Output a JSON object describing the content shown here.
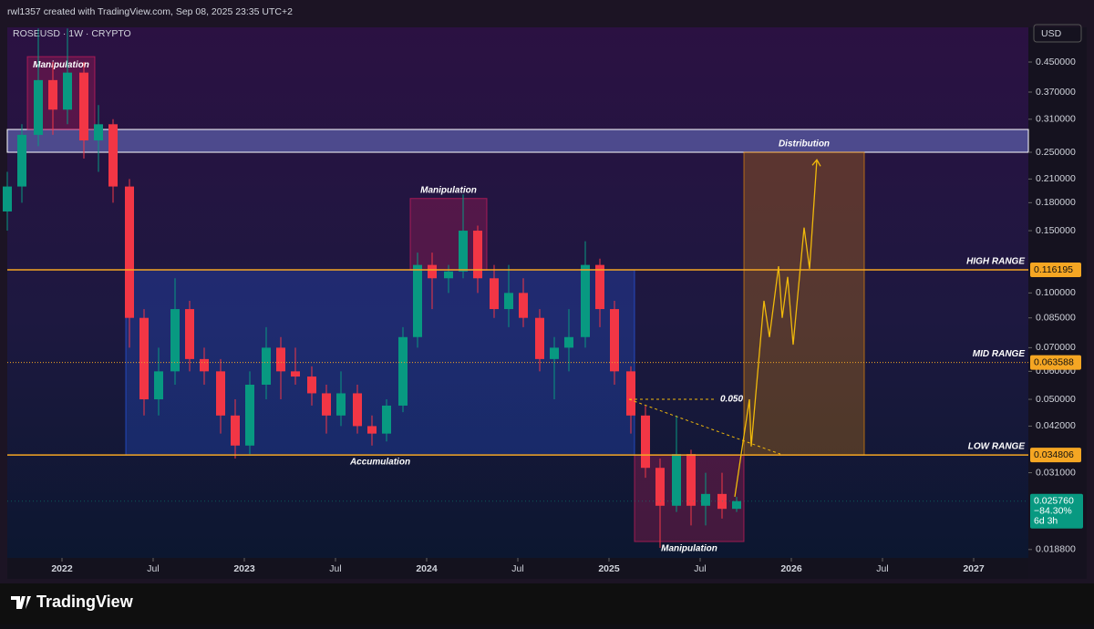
{
  "header": {
    "credit": "rwl1357 created with TradingView.com, Sep 08, 2025 23:35 UTC+2"
  },
  "chart_data": {
    "type": "candlestick",
    "title": "ROSEUSD · 1W · CRYPTO",
    "currency": "USD",
    "log_scale": true,
    "up_color": "#089981",
    "down_color": "#f23645",
    "x": [
      2021.7,
      2021.78,
      2021.87,
      2021.95,
      2022.03,
      2022.12,
      2022.2,
      2022.28,
      2022.37,
      2022.45,
      2022.53,
      2022.62,
      2022.7,
      2022.78,
      2022.87,
      2022.95,
      2023.03,
      2023.12,
      2023.2,
      2023.28,
      2023.37,
      2023.45,
      2023.53,
      2023.62,
      2023.7,
      2023.78,
      2023.87,
      2023.95,
      2024.03,
      2024.12,
      2024.2,
      2024.28,
      2024.37,
      2024.45,
      2024.53,
      2024.62,
      2024.7,
      2024.78,
      2024.87,
      2024.95,
      2025.03,
      2025.12,
      2025.2,
      2025.28,
      2025.37,
      2025.45,
      2025.53,
      2025.62,
      2025.7
    ],
    "open": [
      0.17,
      0.2,
      0.28,
      0.4,
      0.33,
      0.42,
      0.27,
      0.3,
      0.2,
      0.085,
      0.05,
      0.06,
      0.09,
      0.065,
      0.06,
      0.045,
      0.037,
      0.055,
      0.07,
      0.06,
      0.058,
      0.052,
      0.045,
      0.052,
      0.042,
      0.04,
      0.048,
      0.075,
      0.12,
      0.11,
      0.115,
      0.15,
      0.11,
      0.09,
      0.1,
      0.085,
      0.065,
      0.07,
      0.075,
      0.12,
      0.09,
      0.06,
      0.045,
      0.032,
      0.025,
      0.035,
      0.025,
      0.027,
      0.0245
    ],
    "high": [
      0.22,
      0.3,
      0.56,
      0.45,
      0.56,
      0.45,
      0.34,
      0.31,
      0.21,
      0.09,
      0.07,
      0.11,
      0.095,
      0.07,
      0.065,
      0.05,
      0.06,
      0.08,
      0.075,
      0.07,
      0.062,
      0.055,
      0.06,
      0.055,
      0.045,
      0.05,
      0.08,
      0.13,
      0.13,
      0.12,
      0.19,
      0.155,
      0.12,
      0.12,
      0.11,
      0.09,
      0.075,
      0.09,
      0.14,
      0.125,
      0.095,
      0.062,
      0.048,
      0.034,
      0.045,
      0.036,
      0.031,
      0.031,
      0.0265
    ],
    "low": [
      0.15,
      0.18,
      0.26,
      0.28,
      0.3,
      0.24,
      0.22,
      0.18,
      0.07,
      0.045,
      0.045,
      0.055,
      0.06,
      0.055,
      0.04,
      0.034,
      0.035,
      0.05,
      0.05,
      0.055,
      0.048,
      0.04,
      0.042,
      0.04,
      0.037,
      0.038,
      0.046,
      0.07,
      0.09,
      0.1,
      0.11,
      0.1,
      0.085,
      0.08,
      0.08,
      0.06,
      0.05,
      0.06,
      0.07,
      0.08,
      0.055,
      0.04,
      0.03,
      0.019,
      0.024,
      0.022,
      0.022,
      0.023,
      0.024
    ],
    "close": [
      0.2,
      0.28,
      0.4,
      0.33,
      0.42,
      0.27,
      0.3,
      0.2,
      0.085,
      0.05,
      0.06,
      0.09,
      0.065,
      0.06,
      0.045,
      0.037,
      0.055,
      0.07,
      0.06,
      0.058,
      0.052,
      0.045,
      0.052,
      0.042,
      0.04,
      0.048,
      0.075,
      0.12,
      0.11,
      0.115,
      0.15,
      0.11,
      0.09,
      0.1,
      0.085,
      0.065,
      0.07,
      0.075,
      0.12,
      0.09,
      0.06,
      0.045,
      0.032,
      0.025,
      0.035,
      0.025,
      0.027,
      0.0245,
      0.02576
    ],
    "xlim": [
      2021.7,
      2027.3
    ],
    "ylim": [
      0.0178,
      0.564
    ],
    "xticks": [
      {
        "value": 2022,
        "label": "2022"
      },
      {
        "value": 2022.5,
        "label": "Jul"
      },
      {
        "value": 2023,
        "label": "2023"
      },
      {
        "value": 2023.5,
        "label": "Jul"
      },
      {
        "value": 2024,
        "label": "2024"
      },
      {
        "value": 2024.5,
        "label": "Jul"
      },
      {
        "value": 2025,
        "label": "2025"
      },
      {
        "value": 2025.5,
        "label": "Jul"
      },
      {
        "value": 2026,
        "label": "2026"
      },
      {
        "value": 2026.5,
        "label": "Jul"
      },
      {
        "value": 2027,
        "label": "2027"
      }
    ],
    "yticks": [
      {
        "value": 0.45,
        "label": "0.450000"
      },
      {
        "value": 0.37,
        "label": "0.370000"
      },
      {
        "value": 0.31,
        "label": "0.310000"
      },
      {
        "value": 0.25,
        "label": "0.250000"
      },
      {
        "value": 0.21,
        "label": "0.210000"
      },
      {
        "value": 0.18,
        "label": "0.180000"
      },
      {
        "value": 0.15,
        "label": "0.150000"
      },
      {
        "value": 0.1,
        "label": "0.100000"
      },
      {
        "value": 0.085,
        "label": "0.085000"
      },
      {
        "value": 0.07,
        "label": "0.070000"
      },
      {
        "value": 0.06,
        "label": "0.060000"
      },
      {
        "value": 0.05,
        "label": "0.050000"
      },
      {
        "value": 0.042,
        "label": "0.042000"
      },
      {
        "value": 0.031,
        "label": "0.031000"
      },
      {
        "value": 0.0188,
        "label": "0.018800"
      }
    ],
    "band": {
      "y": [
        0.25,
        0.29
      ],
      "color": "#8a9cff"
    },
    "zones": [
      {
        "name": "Manipulation",
        "x": [
          2021.81,
          2022.18
        ],
        "y": [
          0.29,
          0.466
        ],
        "color": "#e91e63",
        "label_pos": "inside-top"
      },
      {
        "name": "Accumulation",
        "x": [
          2022.35,
          2025.14
        ],
        "y": [
          0.034806,
          0.116195
        ],
        "color": "#2962ff",
        "label_pos": "below"
      },
      {
        "name": "Manipulation",
        "x": [
          2023.91,
          2024.33
        ],
        "y": [
          0.116,
          0.185
        ],
        "color": "#e91e63",
        "label_pos": "above"
      },
      {
        "name": "Manipulation",
        "x": [
          2025.14,
          2025.74
        ],
        "y": [
          0.0198,
          0.0348
        ],
        "color": "#e91e63",
        "label_pos": "below"
      },
      {
        "name": "Distribution",
        "x": [
          2025.74,
          2026.4
        ],
        "y": [
          0.0348,
          0.25
        ],
        "color": "#ff9800",
        "label_pos": "above"
      }
    ],
    "levels": [
      {
        "name": "HIGH RANGE",
        "value": 0.116195,
        "label": "0.116195",
        "style": "solid",
        "color": "#f5a623"
      },
      {
        "name": "MID RANGE",
        "value": 0.063588,
        "label": "0.063588",
        "style": "dotted",
        "color": "#f5a623"
      },
      {
        "name": "LOW RANGE",
        "value": 0.034806,
        "label": "0.034806",
        "style": "solid",
        "color": "#f5a623"
      }
    ],
    "projection": {
      "color": "#f0b90b",
      "x": [
        2025.69,
        2025.77,
        2025.78,
        2025.85,
        2025.88,
        2025.93,
        2025.95,
        2025.98,
        2026.01,
        2026.07,
        2026.1,
        2026.14
      ],
      "values": [
        0.0265,
        0.05,
        0.0368,
        0.095,
        0.075,
        0.119,
        0.085,
        0.111,
        0.0714,
        0.153,
        0.117,
        0.238
      ]
    },
    "target": {
      "label": "0.050",
      "value": 0.05,
      "x": [
        2025.11,
        2025.59
      ],
      "color": "#f0b90b"
    },
    "trendline": {
      "x": [
        2025.11,
        2025.94
      ],
      "values": [
        0.05,
        0.035
      ],
      "color": "#f0b90b"
    },
    "last_price": {
      "value": 0.02576,
      "label": "0.025760",
      "change": "−84.30%",
      "countdown": "6d 3h",
      "color": "#089981"
    }
  },
  "footer": {
    "brand": "TradingView"
  }
}
